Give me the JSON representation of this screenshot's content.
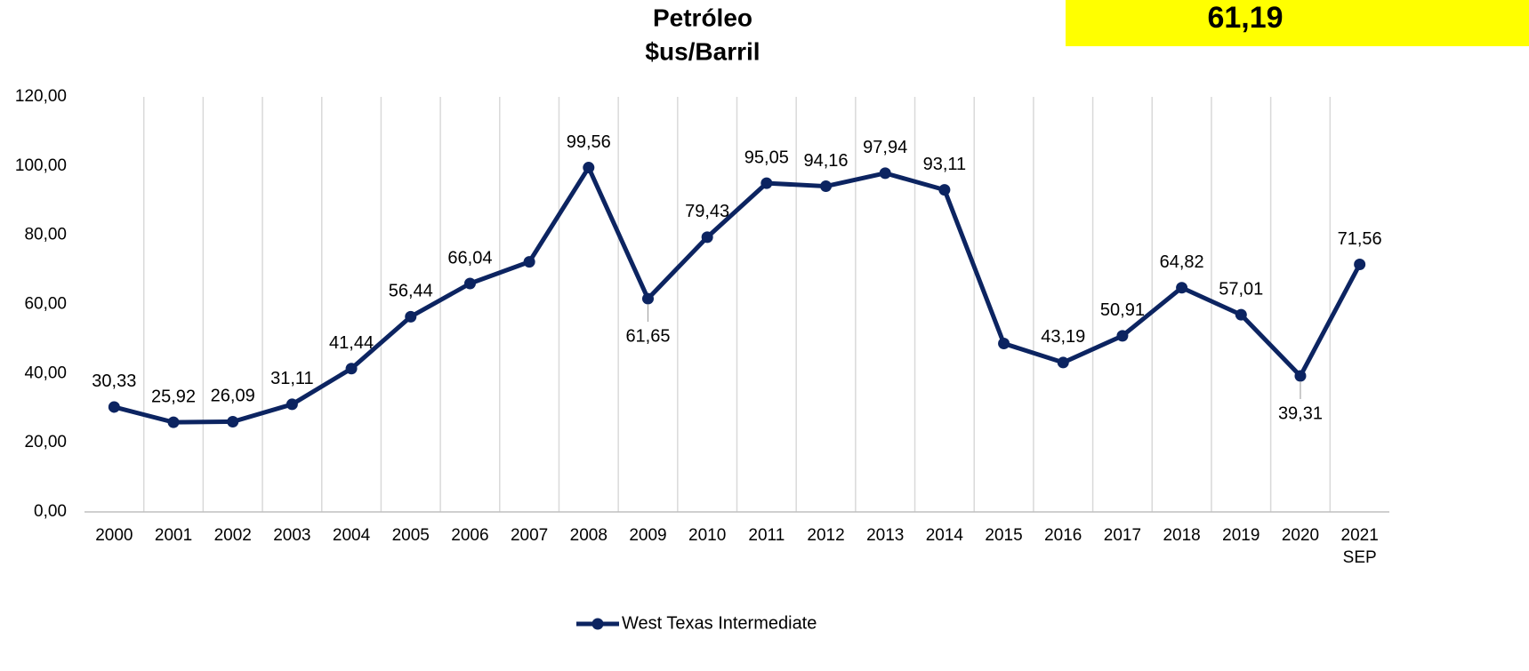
{
  "chart_data": {
    "type": "line",
    "title": "Petróleo",
    "subtitle": "$us/Barril",
    "highlight": "61,19",
    "highlight_color": "#ffff00",
    "categories": [
      "2000",
      "2001",
      "2002",
      "2003",
      "2004",
      "2005",
      "2006",
      "2007",
      "2008",
      "2009",
      "2010",
      "2011",
      "2012",
      "2013",
      "2014",
      "2015",
      "2016",
      "2017",
      "2018",
      "2019",
      "2020",
      "2021\nSEP"
    ],
    "series": [
      {
        "name": "West Texas Intermediate",
        "color": "#0c2461",
        "values": [
          30.33,
          25.92,
          26.09,
          31.11,
          41.44,
          56.44,
          66.04,
          72.3,
          99.56,
          61.65,
          79.43,
          95.05,
          94.16,
          97.94,
          93.11,
          48.7,
          43.19,
          50.91,
          64.82,
          57.01,
          39.31,
          71.56
        ],
        "value_labels": [
          "30,33",
          "25,92",
          "26,09",
          "31,11",
          "41,44",
          "56,44",
          "66,04",
          null,
          "99,56",
          "61,65",
          "79,43",
          "95,05",
          "94,16",
          "97,94",
          "93,11",
          null,
          "43,19",
          "50,91",
          "64,82",
          "57,01",
          "39,31",
          "71,56"
        ]
      }
    ],
    "ylim": [
      0,
      120
    ],
    "yticks": [
      {
        "value": 0,
        "label": "0,00"
      },
      {
        "value": 20,
        "label": "20,00"
      },
      {
        "value": 40,
        "label": "40,00"
      },
      {
        "value": 60,
        "label": "60,00"
      },
      {
        "value": 80,
        "label": "80,00"
      },
      {
        "value": 100,
        "label": "100,00"
      },
      {
        "value": 120,
        "label": "120,00"
      }
    ],
    "grid": "vertical",
    "legend": "bottom"
  }
}
